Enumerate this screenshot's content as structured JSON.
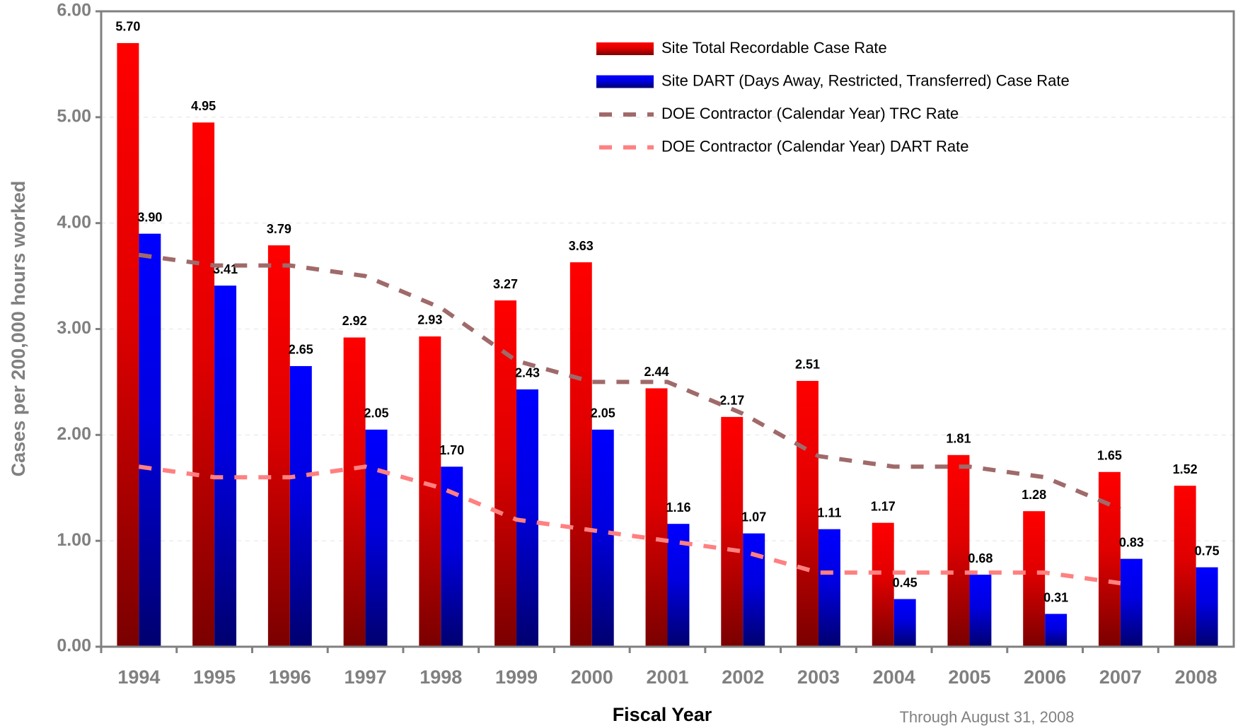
{
  "chart_data": {
    "type": "bar",
    "y_label": "Cases per 200,000 hours worked",
    "x_label": "Fiscal Year",
    "annotation": "Through August 31, 2008",
    "categories": [
      "1994",
      "1995",
      "1996",
      "1997",
      "1998",
      "1999",
      "2000",
      "2001",
      "2002",
      "2003",
      "2004",
      "2005",
      "2006",
      "2007",
      "2008"
    ],
    "series": [
      {
        "name": "Site Total Recordable Case Rate",
        "type": "bar",
        "color": "#ff0000",
        "values": [
          5.7,
          4.95,
          3.79,
          2.92,
          2.93,
          3.27,
          3.63,
          2.44,
          2.17,
          2.51,
          1.17,
          1.81,
          1.28,
          1.65,
          1.52
        ],
        "value_labels": [
          "5.70",
          "4.95",
          "3.79",
          "2.92",
          "2.93",
          "3.27",
          "3.63",
          "2.44",
          "2.17",
          "2.51",
          "1.17",
          "1.81",
          "1.28",
          "1.65",
          "1.52"
        ]
      },
      {
        "name": "Site DART (Days Away, Restricted, Transferred) Case Rate",
        "type": "bar",
        "color": "#0000ff",
        "values": [
          3.9,
          3.41,
          2.65,
          2.05,
          1.7,
          2.43,
          2.05,
          1.16,
          1.07,
          1.11,
          0.45,
          0.68,
          0.31,
          0.83,
          0.75
        ],
        "value_labels": [
          "3.90",
          "3.41",
          "2.65",
          "2.05",
          "1.70",
          "2.43",
          "2.05",
          "1.16",
          "1.07",
          "1.11",
          "0.45",
          "0.68",
          "0.31",
          "0.83",
          "0.75"
        ]
      },
      {
        "name": "DOE Contractor (Calendar Year) TRC Rate",
        "type": "line",
        "color": "#a06a6a",
        "values": [
          3.7,
          3.6,
          3.6,
          3.5,
          3.2,
          2.7,
          2.5,
          2.5,
          2.2,
          1.8,
          1.7,
          1.7,
          1.6,
          1.3,
          null
        ]
      },
      {
        "name": "DOE Contractor (Calendar Year) DART Rate",
        "type": "line",
        "color": "#ff8080",
        "values": [
          1.7,
          1.6,
          1.6,
          1.7,
          1.5,
          1.2,
          1.1,
          1.0,
          0.9,
          0.7,
          0.7,
          0.7,
          0.7,
          0.6,
          null
        ]
      }
    ],
    "ylim": [
      0,
      6
    ],
    "yticks": [
      {
        "value": 0,
        "label": "0.00"
      },
      {
        "value": 1,
        "label": "1.00"
      },
      {
        "value": 2,
        "label": "2.00"
      },
      {
        "value": 3,
        "label": "3.00"
      },
      {
        "value": 4,
        "label": "4.00"
      },
      {
        "value": 5,
        "label": "5.00"
      },
      {
        "value": 6,
        "label": "6.00"
      }
    ],
    "grid": true,
    "legend": "upper right"
  }
}
